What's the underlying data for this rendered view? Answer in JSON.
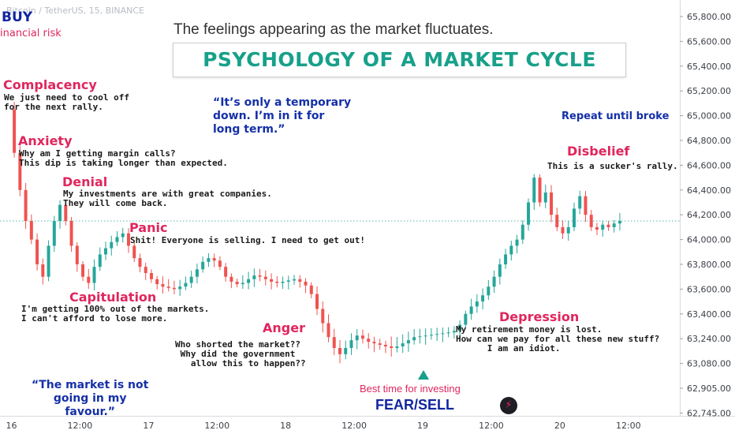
{
  "header": {
    "ticker": "Bitcoin / TetherUS, 15, BINANCE",
    "buy_label": "BUY",
    "risk_label": "inancial risk"
  },
  "title": {
    "subtitle": "The feelings appearing as the market fluctuates.",
    "main": "PSYCHOLOGY OF A MARKET CYCLE"
  },
  "stages": {
    "complacency": {
      "label": "Complacency",
      "note": "We just need to cool off\nfor the next rally."
    },
    "anxiety": {
      "label": "Anxiety",
      "note": "Why am I getting margin calls?\nThis dip is taking longer than expected."
    },
    "denial": {
      "label": "Denial",
      "note": "My investments are with great companies.\nThey will come back."
    },
    "panic": {
      "label": "Panic",
      "note": "Shit! Everyone is selling. I need to get out!"
    },
    "capitulation": {
      "label": "Capitulation",
      "note": "I'm getting 100% out of the markets.\nI can't afford to lose more."
    },
    "anger": {
      "label": "Anger",
      "note": "Who shorted the market??\n Why did the government\n   allow this to happen??"
    },
    "depression": {
      "label": "Depression",
      "note": "My retirement money is lost.\nHow can we pay for all these new stuff?\n      I am an idiot."
    },
    "disbelief": {
      "label": "Disbelief",
      "note": "This is a sucker's rally."
    }
  },
  "quotes": {
    "temporary": "“It’s only a temporary\ndown. I’m in it for\nlong term.”",
    "favour": "“The market is not\ngoing in my\nfavour.”",
    "repeat": "Repeat until broke"
  },
  "bottom": {
    "best_time": "Best time for investing",
    "fear_sell": "FEAR/SELL",
    "flash_icon": "lightning-icon"
  },
  "colors": {
    "stage": "#e0265e",
    "quote": "#1530a8",
    "title": "#17a08a",
    "candle_up": "#26a69a",
    "candle_down": "#ef5350",
    "price_line": "#26a69a",
    "marker": "#17a08a"
  },
  "chart_data": {
    "type": "line",
    "y_ticks": [
      "65,800.00",
      "65,600.00",
      "65,400.00",
      "65,200.00",
      "65,000.00",
      "64,800.00",
      "64,600.00",
      "64,400.00",
      "64,200.00",
      "64,000.00",
      "63,800.00",
      "63,600.00",
      "63,400.00",
      "63,240.00",
      "63,080.00",
      "62,905.00",
      "62,745.00"
    ],
    "x_ticks": [
      {
        "label": "16",
        "t": 0
      },
      {
        "label": "12:00",
        "t": 12
      },
      {
        "label": "17",
        "t": 24
      },
      {
        "label": "12:00",
        "t": 36
      },
      {
        "label": "18",
        "t": 48
      },
      {
        "label": "12:00",
        "t": 60
      },
      {
        "label": "19",
        "t": 72
      },
      {
        "label": "12:00",
        "t": 84
      },
      {
        "label": "20",
        "t": 96
      },
      {
        "label": "12:00",
        "t": 108
      }
    ],
    "x_unit": "hours after 16 00:00",
    "xlim": [
      -2,
      117
    ],
    "last_price": 64150,
    "path": [
      {
        "t": -0.5,
        "p": 65050
      },
      {
        "t": 0.5,
        "p": 64700
      },
      {
        "t": 1.5,
        "p": 64400
      },
      {
        "t": 2.5,
        "p": 64150
      },
      {
        "t": 3.5,
        "p": 64000
      },
      {
        "t": 4.5,
        "p": 63800
      },
      {
        "t": 5.5,
        "p": 63700
      },
      {
        "t": 6.5,
        "p": 63950
      },
      {
        "t": 7.5,
        "p": 64150
      },
      {
        "t": 8.5,
        "p": 64280
      },
      {
        "t": 9.5,
        "p": 64150
      },
      {
        "t": 10.5,
        "p": 63950
      },
      {
        "t": 11.5,
        "p": 63800
      },
      {
        "t": 12.5,
        "p": 63700
      },
      {
        "t": 13.5,
        "p": 63650
      },
      {
        "t": 14.5,
        "p": 63780
      },
      {
        "t": 15.5,
        "p": 63880
      },
      {
        "t": 16.5,
        "p": 63930
      },
      {
        "t": 17.5,
        "p": 63980
      },
      {
        "t": 18.5,
        "p": 64020
      },
      {
        "t": 19.5,
        "p": 64050
      },
      {
        "t": 20.5,
        "p": 63950
      },
      {
        "t": 21.5,
        "p": 63850
      },
      {
        "t": 22.5,
        "p": 63780
      },
      {
        "t": 23.5,
        "p": 63730
      },
      {
        "t": 24.5,
        "p": 63680
      },
      {
        "t": 25.5,
        "p": 63640
      },
      {
        "t": 26.5,
        "p": 63620
      },
      {
        "t": 27.5,
        "p": 63610
      },
      {
        "t": 28.5,
        "p": 63600
      },
      {
        "t": 29.5,
        "p": 63620
      },
      {
        "t": 30.5,
        "p": 63650
      },
      {
        "t": 31.5,
        "p": 63700
      },
      {
        "t": 32.5,
        "p": 63760
      },
      {
        "t": 33.5,
        "p": 63820
      },
      {
        "t": 34.5,
        "p": 63850
      },
      {
        "t": 35.5,
        "p": 63830
      },
      {
        "t": 36.5,
        "p": 63780
      },
      {
        "t": 37.5,
        "p": 63700
      },
      {
        "t": 38.5,
        "p": 63660
      },
      {
        "t": 39.5,
        "p": 63640
      },
      {
        "t": 40.5,
        "p": 63650
      },
      {
        "t": 41.5,
        "p": 63680
      },
      {
        "t": 42.5,
        "p": 63710
      },
      {
        "t": 43.5,
        "p": 63700
      },
      {
        "t": 44.5,
        "p": 63680
      },
      {
        "t": 45.5,
        "p": 63660
      },
      {
        "t": 46.5,
        "p": 63650
      },
      {
        "t": 47.5,
        "p": 63660
      },
      {
        "t": 48.5,
        "p": 63670
      },
      {
        "t": 49.5,
        "p": 63680
      },
      {
        "t": 50.5,
        "p": 63660
      },
      {
        "t": 51.5,
        "p": 63630
      },
      {
        "t": 52.5,
        "p": 63560
      },
      {
        "t": 53.5,
        "p": 63440
      },
      {
        "t": 54.5,
        "p": 63340
      },
      {
        "t": 55.5,
        "p": 63250
      },
      {
        "t": 56.5,
        "p": 63180
      },
      {
        "t": 57.5,
        "p": 63140
      },
      {
        "t": 58.5,
        "p": 63180
      },
      {
        "t": 59.5,
        "p": 63230
      },
      {
        "t": 60.5,
        "p": 63260
      },
      {
        "t": 61.5,
        "p": 63240
      },
      {
        "t": 62.5,
        "p": 63220
      },
      {
        "t": 63.5,
        "p": 63210
      },
      {
        "t": 64.5,
        "p": 63200
      },
      {
        "t": 65.5,
        "p": 63190
      },
      {
        "t": 66.5,
        "p": 63180
      },
      {
        "t": 67.5,
        "p": 63190
      },
      {
        "t": 68.5,
        "p": 63210
      },
      {
        "t": 69.5,
        "p": 63230
      },
      {
        "t": 70.5,
        "p": 63250
      },
      {
        "t": 71.5,
        "p": 63255
      },
      {
        "t": 72.5,
        "p": 63260
      },
      {
        "t": 73.5,
        "p": 63265
      },
      {
        "t": 74.5,
        "p": 63270
      },
      {
        "t": 75.5,
        "p": 63275
      },
      {
        "t": 76.5,
        "p": 63280
      },
      {
        "t": 77.5,
        "p": 63290
      },
      {
        "t": 78.5,
        "p": 63330
      },
      {
        "t": 79.5,
        "p": 63400
      },
      {
        "t": 80.5,
        "p": 63460
      },
      {
        "t": 81.5,
        "p": 63500
      },
      {
        "t": 82.5,
        "p": 63550
      },
      {
        "t": 83.5,
        "p": 63620
      },
      {
        "t": 84.5,
        "p": 63700
      },
      {
        "t": 85.5,
        "p": 63800
      },
      {
        "t": 86.5,
        "p": 63880
      },
      {
        "t": 87.5,
        "p": 63950
      },
      {
        "t": 88.5,
        "p": 64000
      },
      {
        "t": 89.5,
        "p": 64120
      },
      {
        "t": 90.5,
        "p": 64300
      },
      {
        "t": 91.5,
        "p": 64500
      },
      {
        "t": 92.5,
        "p": 64300
      },
      {
        "t": 93.5,
        "p": 64380
      },
      {
        "t": 94.5,
        "p": 64200
      },
      {
        "t": 95.5,
        "p": 64100
      },
      {
        "t": 96.5,
        "p": 64050
      },
      {
        "t": 97.5,
        "p": 64100
      },
      {
        "t": 98.5,
        "p": 64250
      },
      {
        "t": 99.5,
        "p": 64350
      },
      {
        "t": 100.5,
        "p": 64200
      },
      {
        "t": 101.5,
        "p": 64100
      },
      {
        "t": 102.5,
        "p": 64080
      },
      {
        "t": 103.5,
        "p": 64120
      },
      {
        "t": 104.5,
        "p": 64100
      },
      {
        "t": 105.5,
        "p": 64130
      },
      {
        "t": 106.5,
        "p": 64150
      }
    ]
  }
}
